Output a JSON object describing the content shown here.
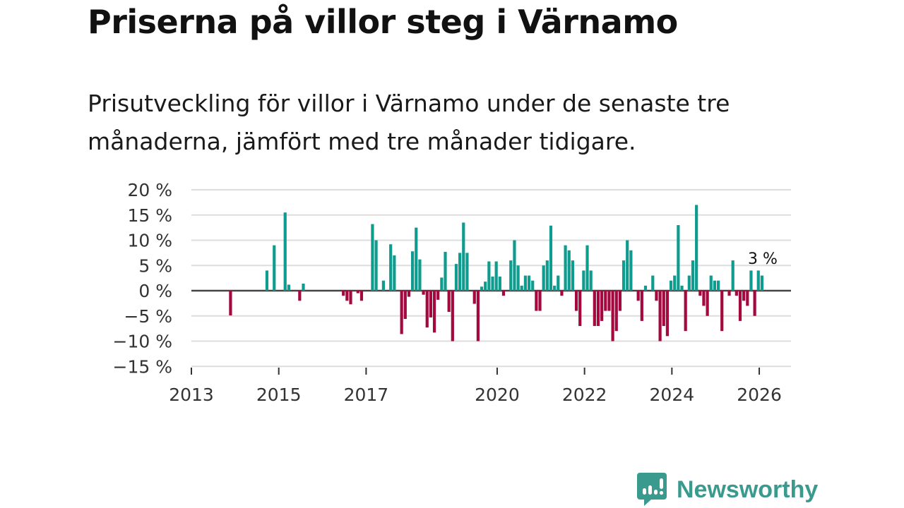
{
  "header": {
    "title": "Priserna på villor steg i Värnamo",
    "subtitle": "Prisutveckling för villor i Värnamo under de senaste tre månaderna, jämfört med tre månader tidigare."
  },
  "brand": {
    "name": "Newsworthy",
    "color": "#3a9a8d"
  },
  "chart_data": {
    "type": "bar",
    "title": "Priserna på villor steg i Värnamo",
    "subtitle": "Prisutveckling för villor i Värnamo under de senaste tre månaderna, jämfört med tre månader tidigare.",
    "xlabel": "",
    "ylabel": "",
    "ylim": [
      -15,
      20
    ],
    "xlim": [
      "2013-01",
      "2026-12"
    ],
    "grid": true,
    "y_ticks": [
      "20 %",
      "15 %",
      "10 %",
      "5 %",
      "0 %",
      "−5 %",
      "−10 %",
      "−15 %"
    ],
    "y_tick_values": [
      20,
      15,
      10,
      5,
      0,
      -5,
      -10,
      -15
    ],
    "x_ticks": [
      "2013",
      "2015",
      "2017",
      "2020",
      "2022",
      "2024",
      "2026"
    ],
    "colors": {
      "positive": "#0f9b8e",
      "negative": "#a3093f",
      "zero_line": "#444444",
      "grid": "#dddddd"
    },
    "annotation": {
      "text": "3 %",
      "month": "2026-01"
    },
    "months": [
      "2013-11",
      "2014-09",
      "2014-11",
      "2015-02",
      "2015-03",
      "2015-06",
      "2015-07",
      "2016-06",
      "2016-07",
      "2016-08",
      "2016-10",
      "2016-11",
      "2017-02",
      "2017-03",
      "2017-05",
      "2017-07",
      "2017-08",
      "2017-10",
      "2017-11",
      "2017-12",
      "2018-01",
      "2018-02",
      "2018-03",
      "2018-04",
      "2018-05",
      "2018-06",
      "2018-07",
      "2018-08",
      "2018-09",
      "2018-10",
      "2018-11",
      "2018-12",
      "2019-01",
      "2019-02",
      "2019-03",
      "2019-04",
      "2019-06",
      "2019-07",
      "2019-08",
      "2019-09",
      "2019-10",
      "2019-11",
      "2019-12",
      "2020-01",
      "2020-02",
      "2020-04",
      "2020-05",
      "2020-06",
      "2020-07",
      "2020-08",
      "2020-09",
      "2020-10",
      "2020-11",
      "2020-12",
      "2021-01",
      "2021-02",
      "2021-03",
      "2021-04",
      "2021-05",
      "2021-06",
      "2021-07",
      "2021-08",
      "2021-09",
      "2021-10",
      "2021-11",
      "2021-12",
      "2022-01",
      "2022-02",
      "2022-03",
      "2022-04",
      "2022-05",
      "2022-06",
      "2022-07",
      "2022-08",
      "2022-09",
      "2022-10",
      "2022-11",
      "2022-12",
      "2023-01",
      "2023-03",
      "2023-04",
      "2023-05",
      "2023-07",
      "2023-08",
      "2023-09",
      "2023-10",
      "2023-11",
      "2023-12",
      "2024-01",
      "2024-02",
      "2024-03",
      "2024-04",
      "2024-05",
      "2024-06",
      "2024-07",
      "2024-08",
      "2024-09",
      "2024-10",
      "2024-11",
      "2024-12",
      "2025-01",
      "2025-02",
      "2025-04",
      "2025-05",
      "2025-06",
      "2025-07",
      "2025-08",
      "2025-09",
      "2025-10",
      "2025-11",
      "2025-12",
      "2026-01"
    ],
    "values": [
      -4.9,
      4,
      9,
      15.5,
      1.2,
      -2,
      1.4,
      -1,
      -2,
      -2.7,
      -0.5,
      -2,
      13.2,
      10,
      2,
      9.2,
      7,
      -8.6,
      -5.6,
      -1.2,
      7.8,
      12.5,
      6.2,
      -0.8,
      -7.3,
      -5.3,
      -8.3,
      -1.8,
      2.6,
      7.7,
      -4.2,
      -10,
      5.3,
      7.5,
      13.5,
      7.5,
      -2.6,
      -10,
      0.8,
      1.8,
      5.8,
      2.8,
      5.8,
      2.8,
      -1,
      6,
      10,
      5,
      1,
      3,
      3,
      2,
      -4,
      -4,
      5,
      6,
      12.9,
      1,
      3,
      -1,
      9,
      8,
      6,
      -4,
      -7,
      4,
      9,
      4,
      -7,
      -7,
      -6,
      -4,
      -4,
      -10,
      -8,
      -4,
      6,
      10,
      8,
      -2,
      -6,
      1,
      3,
      -2,
      -10,
      -7,
      -9,
      2,
      3,
      13,
      1,
      -8,
      3,
      6,
      17,
      -1,
      -3,
      -5,
      3,
      2,
      2,
      -8,
      -1,
      6,
      -1,
      -6,
      -2,
      -3,
      4,
      -5,
      4,
      3
    ]
  }
}
